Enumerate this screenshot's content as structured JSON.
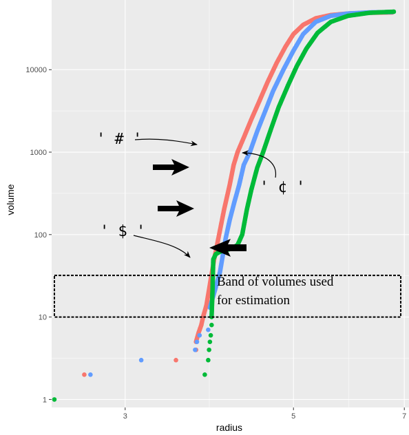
{
  "chart_data": {
    "type": "scatter",
    "xlabel": "radius",
    "ylabel": "volume",
    "x_scale": "log",
    "y_scale": "log",
    "xlim": [
      2.4,
      7.1
    ],
    "ylim": [
      0.8,
      70000
    ],
    "x_ticks": [
      3,
      5,
      7
    ],
    "y_ticks": [
      1,
      10,
      100,
      1000,
      10000
    ],
    "y_tick_labels": [
      "1",
      "10",
      "100",
      "1000",
      "10000"
    ],
    "grid": true,
    "legend": "none",
    "series": [
      {
        "color": "#F8766D",
        "scatter": [
          [
            2.65,
            2
          ],
          [
            3.5,
            3
          ],
          [
            3.72,
            4
          ]
        ],
        "curve": [
          [
            3.72,
            5
          ],
          [
            3.75,
            6.5
          ],
          [
            3.78,
            8
          ],
          [
            3.8,
            10
          ],
          [
            3.84,
            14
          ],
          [
            3.88,
            25
          ],
          [
            3.93,
            50
          ],
          [
            3.99,
            100
          ],
          [
            4.05,
            200
          ],
          [
            4.12,
            400
          ],
          [
            4.17,
            700
          ],
          [
            4.22,
            1000
          ],
          [
            4.3,
            1500
          ],
          [
            4.4,
            2500
          ],
          [
            4.5,
            4000
          ],
          [
            4.62,
            7000
          ],
          [
            4.75,
            12000
          ],
          [
            4.88,
            19000
          ],
          [
            5.0,
            27000
          ],
          [
            5.15,
            35000
          ],
          [
            5.35,
            42000
          ],
          [
            5.6,
            46000
          ],
          [
            5.9,
            48000
          ],
          [
            6.3,
            49000
          ],
          [
            6.75,
            49500
          ]
        ]
      },
      {
        "color": "#619CFF",
        "scatter": [
          [
            2.7,
            2
          ],
          [
            3.15,
            3
          ],
          [
            3.71,
            4
          ],
          [
            3.73,
            5
          ],
          [
            3.76,
            6
          ],
          [
            3.86,
            7
          ]
        ],
        "curve": [
          [
            3.88,
            13
          ],
          [
            3.92,
            18
          ],
          [
            3.96,
            25
          ],
          [
            4.0,
            35
          ],
          [
            4.04,
            60
          ],
          [
            4.07,
            90
          ],
          [
            4.12,
            150
          ],
          [
            4.18,
            250
          ],
          [
            4.24,
            400
          ],
          [
            4.3,
            700
          ],
          [
            4.38,
            1000
          ],
          [
            4.48,
            1800
          ],
          [
            4.58,
            3000
          ],
          [
            4.7,
            5500
          ],
          [
            4.85,
            10000
          ],
          [
            5.0,
            17000
          ],
          [
            5.15,
            27000
          ],
          [
            5.35,
            38000
          ],
          [
            5.6,
            45000
          ],
          [
            5.9,
            48000
          ],
          [
            6.3,
            49500
          ],
          [
            6.75,
            50000
          ]
        ]
      },
      {
        "color": "#00BA38",
        "scatter": [
          [
            2.42,
            1
          ],
          [
            3.82,
            2
          ],
          [
            3.86,
            3
          ],
          [
            3.87,
            4
          ],
          [
            3.88,
            5
          ],
          [
            3.89,
            6
          ],
          [
            3.9,
            8
          ]
        ],
        "curve": [
          [
            3.9,
            10
          ],
          [
            3.91,
            20
          ],
          [
            3.92,
            50
          ],
          [
            3.95,
            58
          ],
          [
            4.0,
            62
          ],
          [
            4.08,
            65
          ],
          [
            4.15,
            68
          ],
          [
            4.22,
            75
          ],
          [
            4.28,
            100
          ],
          [
            4.34,
            200
          ],
          [
            4.4,
            350
          ],
          [
            4.48,
            650
          ],
          [
            4.56,
            1000
          ],
          [
            4.66,
            1800
          ],
          [
            4.78,
            3500
          ],
          [
            4.92,
            6500
          ],
          [
            5.05,
            11000
          ],
          [
            5.2,
            18000
          ],
          [
            5.38,
            28000
          ],
          [
            5.6,
            38000
          ],
          [
            5.9,
            45000
          ],
          [
            6.3,
            49000
          ],
          [
            6.78,
            50500
          ]
        ]
      }
    ],
    "annotations": [
      {
        "label": "' # '",
        "target": [
          4.22,
          1000
        ]
      },
      {
        "label": "' $ '",
        "target": [
          3.92,
          35
        ]
      },
      {
        "label": "' ¢ '",
        "target": [
          4.56,
          1000
        ]
      }
    ],
    "band": {
      "ymin": 10,
      "ymax": 32,
      "label_line1": "Band of volumes used",
      "label_line2": "for estimation"
    }
  }
}
